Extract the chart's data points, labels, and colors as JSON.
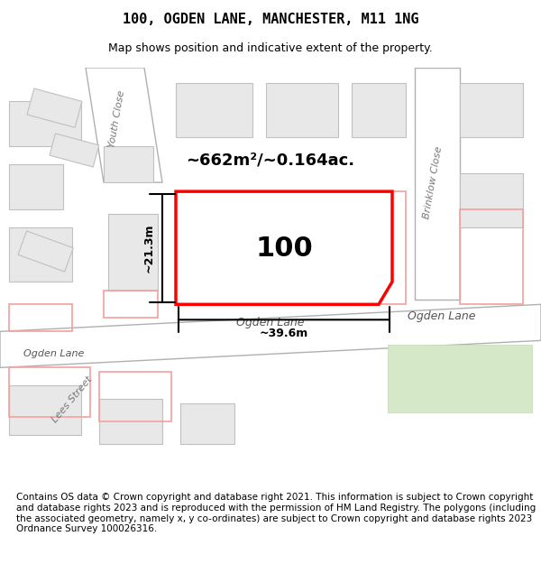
{
  "title": "100, OGDEN LANE, MANCHESTER, M11 1NG",
  "subtitle": "Map shows position and indicative extent of the property.",
  "footer": "Contains OS data © Crown copyright and database right 2021. This information is subject to Crown copyright and database rights 2023 and is reproduced with the permission of HM Land Registry. The polygons (including the associated geometry, namely x, y co-ordinates) are subject to Crown copyright and database rights 2023 Ordnance Survey 100026316.",
  "area_label": "~662m²/~0.164ac.",
  "property_number": "100",
  "dim_width": "~39.6m",
  "dim_height": "~21.3m",
  "street_label_1": "Ogden Lane",
  "street_label_2": "Ogden Lane",
  "street_label_3": "Youth Close",
  "street_label_4": "Brinklow Close",
  "street_label_5": "Lees Street",
  "bg_color": "#f5f5f5",
  "map_bg": "#f0eeeb",
  "road_color": "#ffffff",
  "road_stroke": "#cccccc",
  "block_color": "#e8e8e8",
  "block_stroke": "#cccccc",
  "red_plot_color": "#ff0000",
  "title_fontsize": 11,
  "subtitle_fontsize": 9,
  "footer_fontsize": 7.5
}
